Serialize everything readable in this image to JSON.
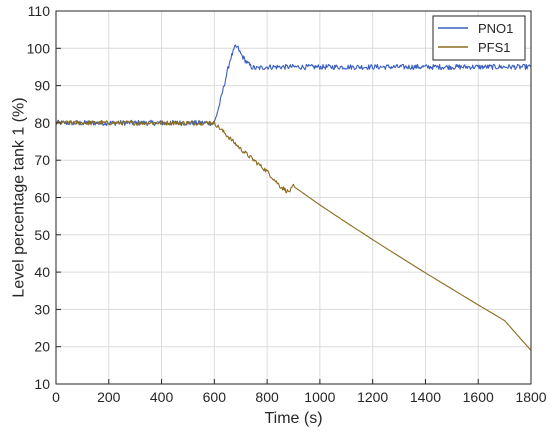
{
  "chart_data": {
    "type": "line",
    "xlabel": "Time (s)",
    "ylabel": "Level percentage tank 1 (%)",
    "xlim": [
      0,
      1800
    ],
    "ylim": [
      10,
      110
    ],
    "xticks": [
      0,
      200,
      400,
      600,
      800,
      1000,
      1200,
      1400,
      1600,
      1800
    ],
    "yticks": [
      10,
      20,
      30,
      40,
      50,
      60,
      70,
      80,
      90,
      100,
      110
    ],
    "grid": true,
    "legend_position": "top-right",
    "series": [
      {
        "name": "PNO1",
        "color": "#3b5fc0",
        "noise": 0.7,
        "x": [
          0,
          100,
          200,
          300,
          400,
          500,
          600,
          620,
          640,
          660,
          680,
          690,
          700,
          720,
          740,
          760,
          780,
          800,
          850,
          900,
          1000,
          1200,
          1400,
          1600,
          1800
        ],
        "y": [
          80,
          80,
          80,
          80,
          80,
          80,
          80,
          85,
          91,
          97,
          100.5,
          100,
          98.5,
          96.5,
          95,
          94.6,
          94.8,
          95,
          95,
          95,
          95,
          95,
          95,
          95,
          95
        ]
      },
      {
        "name": "PFS1",
        "color": "#8b6d1f",
        "noise": 0.6,
        "x": [
          0,
          100,
          200,
          300,
          400,
          500,
          600,
          650,
          700,
          750,
          800,
          850,
          880,
          890,
          900,
          950,
          1000,
          1100,
          1200,
          1300,
          1400,
          1500,
          1600,
          1700,
          1800
        ],
        "y": [
          80,
          80,
          80,
          80,
          80,
          80,
          80,
          76.5,
          73,
          70,
          67,
          63,
          61.5,
          62,
          63,
          60.5,
          58,
          53.3,
          48.7,
          44.2,
          39.8,
          35.5,
          31.2,
          27,
          19
        ]
      }
    ]
  }
}
